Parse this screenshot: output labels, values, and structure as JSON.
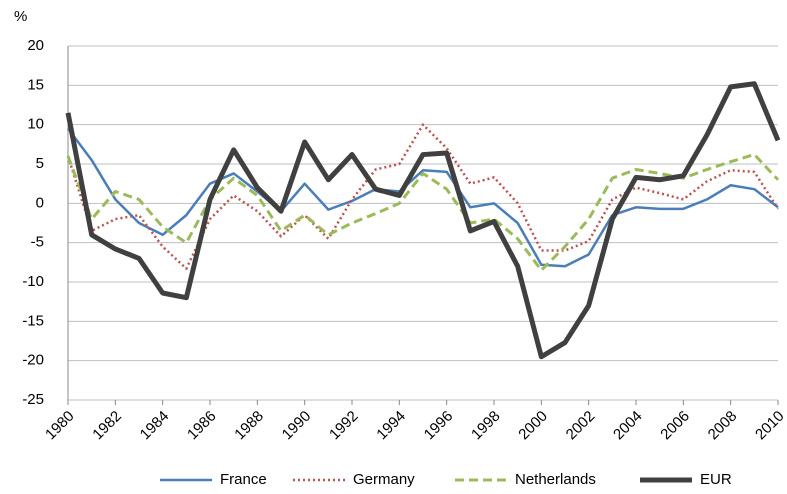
{
  "chart_data": {
    "type": "line",
    "y_label": "%",
    "x": [
      1980,
      1981,
      1982,
      1983,
      1984,
      1985,
      1986,
      1987,
      1988,
      1989,
      1990,
      1991,
      1992,
      1993,
      1994,
      1995,
      1996,
      1997,
      1998,
      1999,
      2000,
      2001,
      2002,
      2003,
      2004,
      2005,
      2006,
      2007,
      2008,
      2009,
      2010
    ],
    "xlim": [
      1980,
      2010
    ],
    "xticks": [
      1980,
      1982,
      1984,
      1986,
      1988,
      1990,
      1992,
      1994,
      1996,
      1998,
      2000,
      2002,
      2004,
      2006,
      2008,
      2010
    ],
    "ylim": [
      -25,
      20
    ],
    "yticks": [
      -25,
      -20,
      -15,
      -10,
      -5,
      0,
      5,
      10,
      15,
      20
    ],
    "grid": true,
    "legend": "bottom",
    "series": [
      {
        "name": "France",
        "color": "#4a7ebb",
        "style": "solid",
        "values": [
          9.5,
          5.5,
          0.5,
          -2.5,
          -4,
          -1.5,
          2.5,
          3.8,
          1.5,
          -1,
          2.5,
          -0.8,
          0.3,
          1.8,
          1.5,
          4.2,
          4,
          -0.5,
          0,
          -2.5,
          -7.8,
          -8,
          -6.5,
          -1.5,
          -0.5,
          -0.7,
          -0.7,
          0.5,
          2.3,
          1.8,
          -0.5
        ]
      },
      {
        "name": "Germany",
        "color": "#c0504d",
        "style": "dotted",
        "values": [
          6,
          -3.5,
          -2,
          -1.5,
          -5.5,
          -8.3,
          -2,
          1,
          -1,
          -4.2,
          -1.5,
          -4.5,
          0.5,
          4.3,
          5,
          10,
          7,
          2.5,
          3.3,
          0,
          -6,
          -6,
          -4.8,
          0.5,
          2,
          1.3,
          0.5,
          2.8,
          4.2,
          4,
          -0.7
        ]
      },
      {
        "name": "Netherlands",
        "color": "#9bbb59",
        "style": "dashed",
        "values": [
          6,
          -2,
          1.5,
          0.5,
          -3,
          -5,
          0.5,
          3.2,
          1,
          -3.5,
          -1.5,
          -4,
          -2.5,
          -1.3,
          0,
          3.8,
          1.8,
          -2.5,
          -2,
          -4.5,
          -8.5,
          -5.5,
          -2,
          3.2,
          4.3,
          3.8,
          3.2,
          4.3,
          5.3,
          6.2,
          3
        ]
      },
      {
        "name": "EUR",
        "color": "#404040",
        "style": "thick",
        "values": [
          11.5,
          -4,
          -5.8,
          -7,
          -11.4,
          -12,
          0.5,
          6.8,
          2,
          -1,
          7.8,
          3,
          6.2,
          1.8,
          1,
          6.2,
          6.4,
          -3.5,
          -2.3,
          -8,
          -19.5,
          -17.7,
          -13,
          -2,
          3.3,
          3,
          3.5,
          8.7,
          14.8,
          15.2,
          8
        ]
      }
    ]
  }
}
